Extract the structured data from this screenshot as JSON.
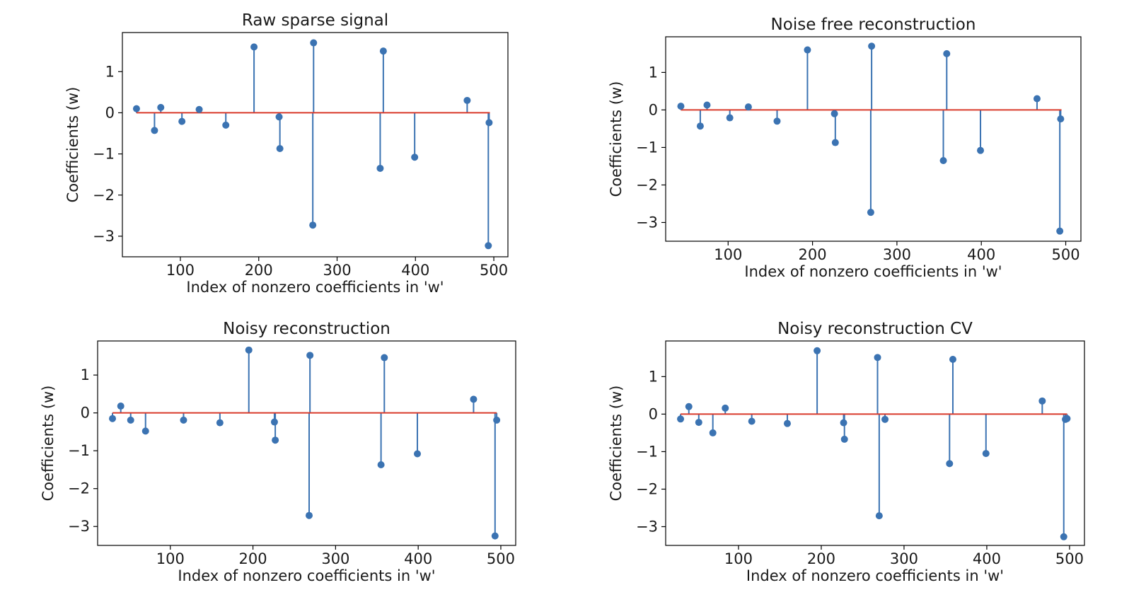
{
  "figure": {
    "colors": {
      "stem": "#3b73b2",
      "baseline": "#d93a2b",
      "axes": "#000000",
      "background": "#ffffff"
    }
  },
  "chart_data": [
    {
      "type": "stem",
      "title": "Raw sparse signal",
      "xlabel": "Index of nonzero coefficients in 'w'",
      "ylabel": "Coefficients (w)",
      "xlim": [
        26,
        518
      ],
      "ylim": [
        -3.5,
        1.95
      ],
      "xticks": [
        100,
        200,
        300,
        400,
        500
      ],
      "xtick_labels": [
        "100",
        "200",
        "300",
        "400",
        "500"
      ],
      "yticks": [
        1,
        0,
        -1,
        -2,
        -3
      ],
      "ytick_labels": [
        "1",
        "0",
        "−1",
        "−2",
        "−3"
      ],
      "baseline_range": [
        44,
        495
      ],
      "x": [
        44,
        67,
        75,
        102,
        124,
        158,
        194,
        226,
        227,
        269,
        270,
        355,
        359,
        399,
        466,
        493,
        494
      ],
      "y": [
        0.1,
        -0.43,
        0.13,
        -0.21,
        0.08,
        -0.3,
        1.6,
        -0.1,
        -0.87,
        -2.73,
        1.7,
        -1.35,
        1.5,
        -1.08,
        0.3,
        -3.23,
        -0.24
      ]
    },
    {
      "type": "stem",
      "title": "Noise free reconstruction",
      "xlabel": "Index of nonzero coefficients in 'w'",
      "ylabel": "Coefficients (w)",
      "xlim": [
        26,
        518
      ],
      "ylim": [
        -3.5,
        1.95
      ],
      "xticks": [
        100,
        200,
        300,
        400,
        500
      ],
      "xtick_labels": [
        "100",
        "200",
        "300",
        "400",
        "500"
      ],
      "yticks": [
        1,
        0,
        -1,
        -2,
        -3
      ],
      "ytick_labels": [
        "1",
        "0",
        "−1",
        "−2",
        "−3"
      ],
      "baseline_range": [
        44,
        495
      ],
      "x": [
        44,
        67,
        75,
        102,
        124,
        158,
        194,
        226,
        227,
        269,
        270,
        355,
        359,
        399,
        466,
        493,
        494
      ],
      "y": [
        0.1,
        -0.43,
        0.13,
        -0.21,
        0.08,
        -0.3,
        1.6,
        -0.1,
        -0.87,
        -2.73,
        1.7,
        -1.35,
        1.5,
        -1.08,
        0.3,
        -3.23,
        -0.24
      ]
    },
    {
      "type": "stem",
      "title": "Noisy reconstruction",
      "xlabel": "Index of nonzero coefficients in 'w'",
      "ylabel": "Coefficients (w)",
      "xlim": [
        12,
        518
      ],
      "ylim": [
        -3.5,
        1.9
      ],
      "xticks": [
        100,
        200,
        300,
        400,
        500
      ],
      "xtick_labels": [
        "100",
        "200",
        "300",
        "400",
        "500"
      ],
      "yticks": [
        1,
        0,
        -1,
        -2,
        -3
      ],
      "ytick_labels": [
        "1",
        "0",
        "−1",
        "−2",
        "−3"
      ],
      "baseline_range": [
        30,
        495
      ],
      "x": [
        30,
        40,
        52,
        70,
        116,
        160,
        195,
        226,
        227,
        268,
        269,
        355,
        359,
        399,
        467,
        493,
        495
      ],
      "y": [
        -0.15,
        0.18,
        -0.19,
        -0.48,
        -0.19,
        -0.26,
        1.66,
        -0.24,
        -0.72,
        -2.71,
        1.52,
        -1.37,
        1.46,
        -1.08,
        0.36,
        -3.25,
        -0.19
      ]
    },
    {
      "type": "stem",
      "title": "Noisy reconstruction CV",
      "xlabel": "Index of nonzero coefficients in 'w'",
      "ylabel": "Coefficients (w)",
      "xlim": [
        12,
        518
      ],
      "ylim": [
        -3.5,
        1.95
      ],
      "xticks": [
        100,
        200,
        300,
        400,
        500
      ],
      "xtick_labels": [
        "100",
        "200",
        "300",
        "400",
        "500"
      ],
      "yticks": [
        1,
        0,
        -1,
        -2,
        -3
      ],
      "ytick_labels": [
        "1",
        "0",
        "−1",
        "−2",
        "−3"
      ],
      "baseline_range": [
        30,
        497
      ],
      "x": [
        30,
        40,
        52,
        69,
        84,
        116,
        159,
        195,
        227,
        228,
        268,
        270,
        277,
        355,
        359,
        399,
        467,
        493,
        495,
        497
      ],
      "y": [
        -0.13,
        0.2,
        -0.22,
        -0.5,
        0.16,
        -0.19,
        -0.25,
        1.69,
        -0.23,
        -0.67,
        1.51,
        -2.71,
        -0.14,
        -1.32,
        1.46,
        -1.05,
        0.35,
        -3.27,
        -0.14,
        -0.12
      ]
    }
  ]
}
